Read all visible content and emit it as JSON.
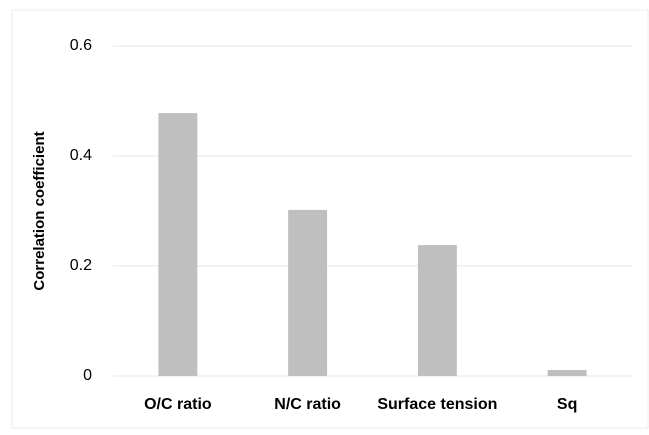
{
  "chart_data": {
    "type": "bar",
    "y_label": "Correlation coefficient",
    "categories": [
      "O/C ratio",
      "N/C ratio",
      "Surface tension",
      "Sq"
    ],
    "values": [
      0.478,
      0.302,
      0.238,
      0.011
    ],
    "color": "#bfbfbf",
    "ylim": [
      0,
      0.6
    ],
    "yticks": [
      0,
      0.2,
      0.4,
      0.6
    ],
    "grid": true
  }
}
